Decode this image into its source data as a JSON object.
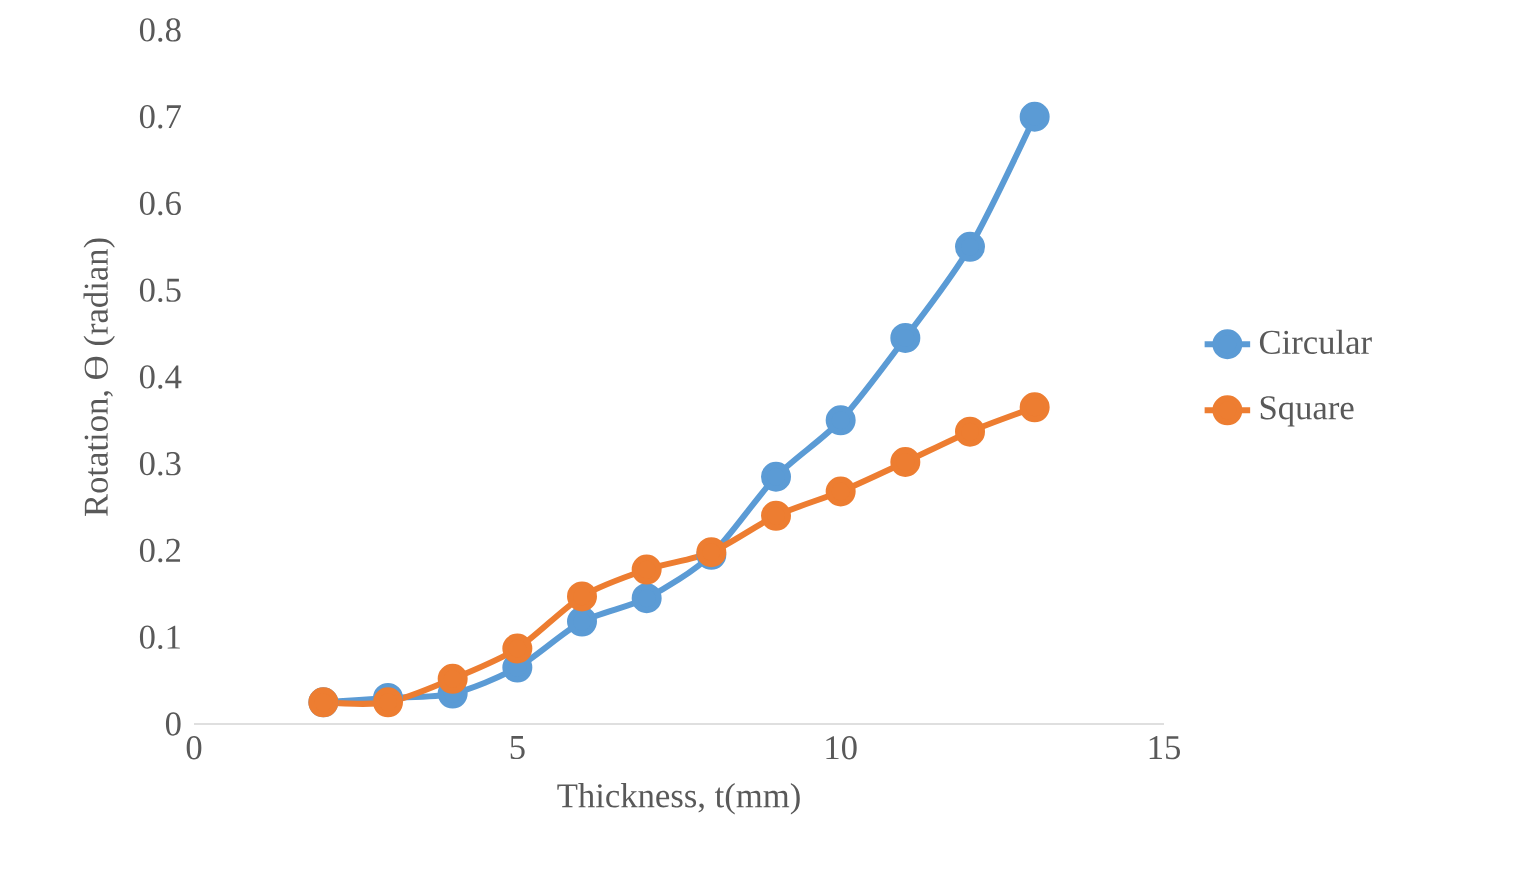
{
  "chart_data": {
    "type": "line",
    "xlabel": "Thickness, t(mm)",
    "ylabel": "Rotation, ϴ (radian)",
    "xlim": [
      0,
      15
    ],
    "xticks": [
      0,
      5,
      10,
      15
    ],
    "ylim": [
      0,
      0.8
    ],
    "yticks": [
      0,
      0.1,
      0.2,
      0.3,
      0.4,
      0.5,
      0.6,
      0.7,
      0.8
    ],
    "x": [
      2,
      3,
      4,
      5,
      6,
      7,
      8,
      9,
      10,
      11,
      12,
      13
    ],
    "series": [
      {
        "name": "Circular",
        "color": "#5b9bd5",
        "values": [
          0.025,
          0.03,
          0.035,
          0.065,
          0.118,
          0.145,
          0.195,
          0.285,
          0.35,
          0.445,
          0.55,
          0.7
        ]
      },
      {
        "name": "Square",
        "color": "#ed7d31",
        "values": [
          0.025,
          0.025,
          0.052,
          0.087,
          0.147,
          0.178,
          0.198,
          0.24,
          0.268,
          0.302,
          0.337,
          0.365
        ]
      }
    ],
    "marker": "circle",
    "legend": "right",
    "grid": false
  }
}
